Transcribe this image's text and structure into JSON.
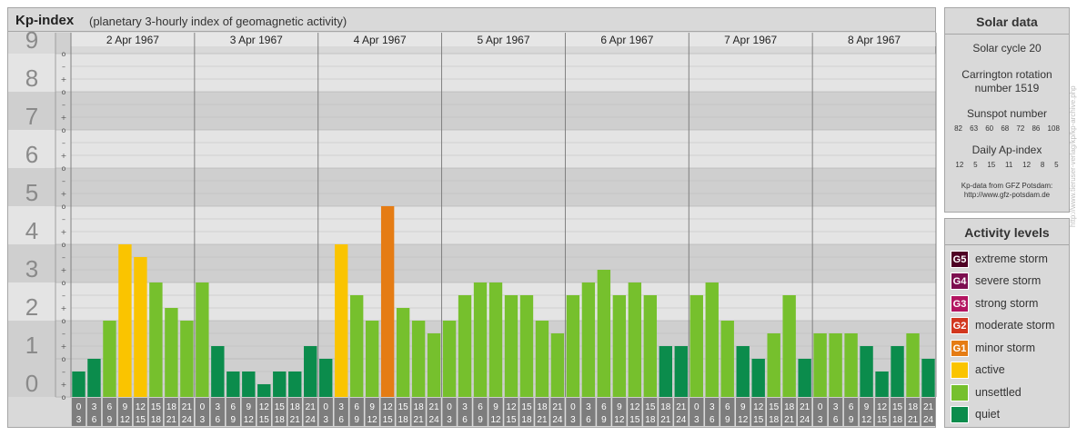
{
  "header": {
    "title": "Kp-index",
    "subtitle": "(planetary 3-hourly index of geomagnetic activity)"
  },
  "chart_data": {
    "type": "bar",
    "y_axis_labels": [
      "0",
      "1",
      "2",
      "3",
      "4",
      "5",
      "6",
      "7",
      "8",
      "9"
    ],
    "fine_tick_labels": [
      "o",
      "+",
      "–"
    ],
    "ylim": [
      0,
      9
    ],
    "days": [
      "2 Apr 1967",
      "3 Apr 1967",
      "4 Apr 1967",
      "5 Apr 1967",
      "6 Apr 1967",
      "7 Apr 1967",
      "8 Apr 1967"
    ],
    "interval_starts": [
      "0",
      "3",
      "6",
      "9",
      "12",
      "15",
      "18",
      "21"
    ],
    "interval_ends": [
      "3",
      "6",
      "9",
      "12",
      "15",
      "18",
      "21",
      "24"
    ],
    "values": [
      0.667,
      1.0,
      2.0,
      4.0,
      3.667,
      3.0,
      2.333,
      2.0,
      3.0,
      1.333,
      0.667,
      0.667,
      0.333,
      0.667,
      0.667,
      1.333,
      1.0,
      4.0,
      2.667,
      2.0,
      5.0,
      2.333,
      2.0,
      1.667,
      2.0,
      2.667,
      3.0,
      3.0,
      2.667,
      2.667,
      2.0,
      1.667,
      2.667,
      3.0,
      3.333,
      2.667,
      3.0,
      2.667,
      1.333,
      1.333,
      2.667,
      3.0,
      2.0,
      1.333,
      1.0,
      1.667,
      2.667,
      1.0,
      1.667,
      1.667,
      1.667,
      1.333,
      0.667,
      1.333,
      1.667,
      1.0
    ],
    "colors": {
      "quiet": "#0b8c4c",
      "unsettled": "#76c02d",
      "active": "#fac400",
      "minor_storm": "#e57c14"
    },
    "grid": true
  },
  "solar_data": {
    "heading": "Solar data",
    "cycle": "Solar cycle 20",
    "carrington_line1": "Carrington rotation",
    "carrington_line2": "number 1519",
    "sunspot_heading": "Sunspot number",
    "sunspot_numbers": [
      "82",
      "63",
      "60",
      "68",
      "72",
      "86",
      "108"
    ],
    "ap_heading": "Daily Ap-index",
    "ap_values": [
      "12",
      "5",
      "15",
      "11",
      "12",
      "8",
      "5"
    ],
    "source_line1": "Kp-data from GFZ Potsdam:",
    "source_line2": "http://www.gfz-potsdam.de"
  },
  "activity_levels": {
    "heading": "Activity levels",
    "items": [
      {
        "code": "G5",
        "label": "extreme storm",
        "color": "#4f0024"
      },
      {
        "code": "G4",
        "label": "severe storm",
        "color": "#7d0f50"
      },
      {
        "code": "G3",
        "label": "strong storm",
        "color": "#b31561"
      },
      {
        "code": "G2",
        "label": "moderate storm",
        "color": "#d2371f"
      },
      {
        "code": "G1",
        "label": "minor storm",
        "color": "#e57c14"
      },
      {
        "code": "",
        "label": "active",
        "color": "#fac400"
      },
      {
        "code": "",
        "label": "unsettled",
        "color": "#76c02d"
      },
      {
        "code": "",
        "label": "quiet",
        "color": "#0b8c4c"
      }
    ]
  },
  "credit": "http://www.tieruser-verlag/kp/kp-archive.php"
}
